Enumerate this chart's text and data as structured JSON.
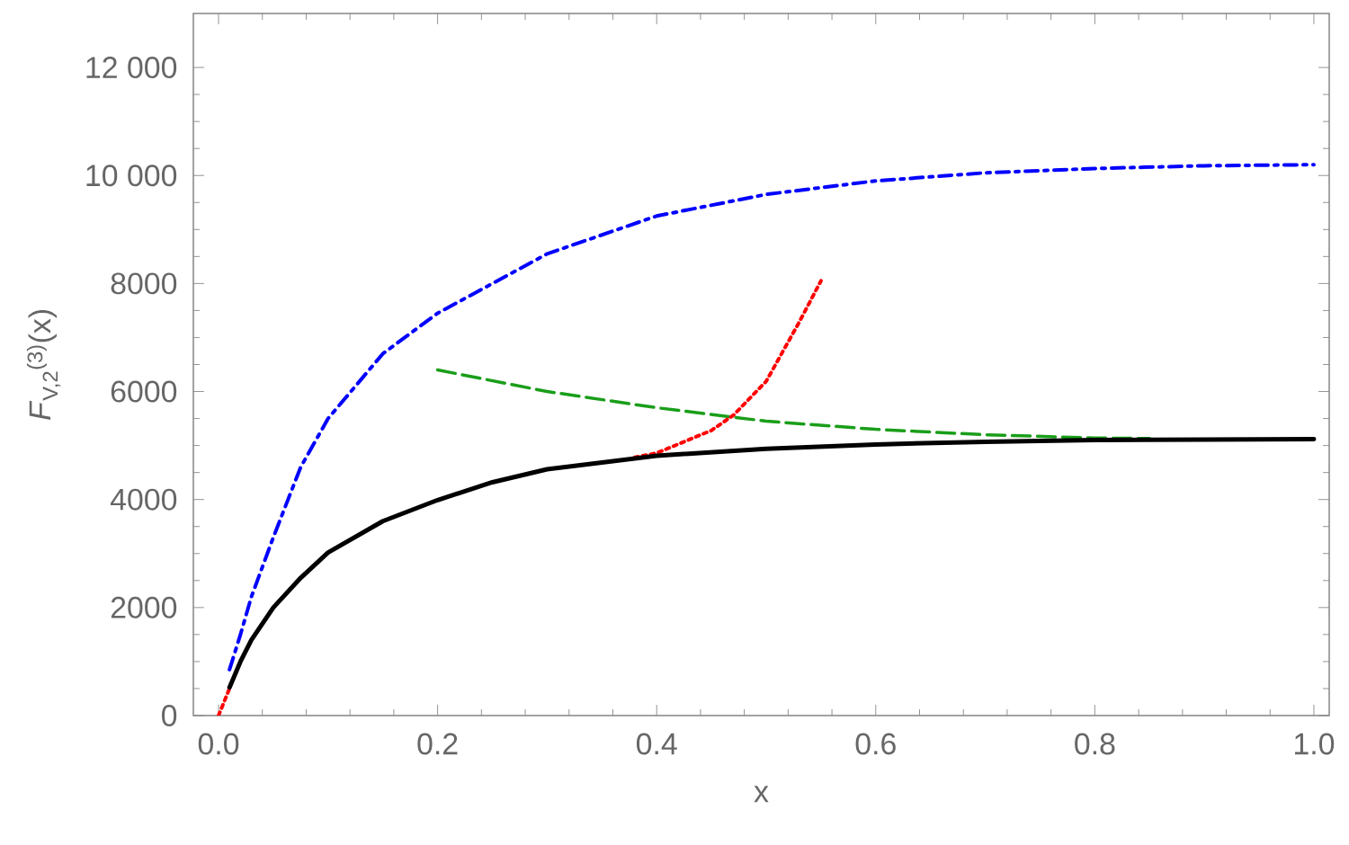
{
  "chart_data": {
    "type": "line",
    "xlabel": "x",
    "ylabel": "*F*$_{V,2}$$^{(3)}$(x)",
    "xlim": [
      -0.023,
      1.014
    ],
    "ylim": [
      0,
      13000
    ],
    "xticks": [
      {
        "value": 0,
        "label": "0.0"
      },
      {
        "value": 0.2,
        "label": "0.2"
      },
      {
        "value": 0.4,
        "label": "0.4"
      },
      {
        "value": 0.6,
        "label": "0.6"
      },
      {
        "value": 0.8,
        "label": "0.8"
      },
      {
        "value": 1,
        "label": "1.0"
      }
    ],
    "yticks": [
      0,
      2000,
      4000,
      6000,
      8000,
      {
        "value": 10000,
        "label": "10 000"
      },
      {
        "value": 12000,
        "label": "12 000"
      }
    ],
    "grid": false,
    "series": [
      {
        "color": "#0000ff",
        "line_style": "dashdot",
        "x": [
          0.01,
          0.02,
          0.03,
          0.05,
          0.075,
          0.1,
          0.15,
          0.2,
          0.3,
          0.4,
          0.5,
          0.6,
          0.7,
          0.8,
          0.9,
          1.0
        ],
        "values": [
          850,
          1500,
          2200,
          3300,
          4600,
          5500,
          6700,
          7450,
          8550,
          9250,
          9650,
          9900,
          10050,
          10130,
          10180,
          10200
        ]
      },
      {
        "color": "#1a9e1a",
        "line_style": "dashed",
        "x": [
          0.2,
          0.3,
          0.4,
          0.5,
          0.6,
          0.7,
          0.8,
          0.85
        ],
        "values": [
          6400,
          6000,
          5700,
          5450,
          5300,
          5200,
          5140,
          5130
        ]
      },
      {
        "color": "#ff0000",
        "line_style": "dotted",
        "x": [
          0.0,
          0.005,
          0.01,
          0.2,
          0.38,
          0.4,
          0.45,
          0.47,
          0.5,
          0.53,
          0.55
        ],
        "values": [
          0,
          250,
          500,
          null,
          4780,
          4860,
          5280,
          5560,
          6190,
          7280,
          8050
        ]
      },
      {
        "color": "#000000",
        "line_style": "solid",
        "x": [
          0.01,
          0.02,
          0.03,
          0.05,
          0.075,
          0.1,
          0.15,
          0.2,
          0.25,
          0.3,
          0.4,
          0.5,
          0.6,
          0.7,
          0.8,
          0.9,
          1.0
        ],
        "values": [
          520,
          1000,
          1400,
          2000,
          2550,
          3020,
          3600,
          3990,
          4320,
          4560,
          4810,
          4940,
          5020,
          5070,
          5100,
          5110,
          5120
        ]
      }
    ]
  }
}
